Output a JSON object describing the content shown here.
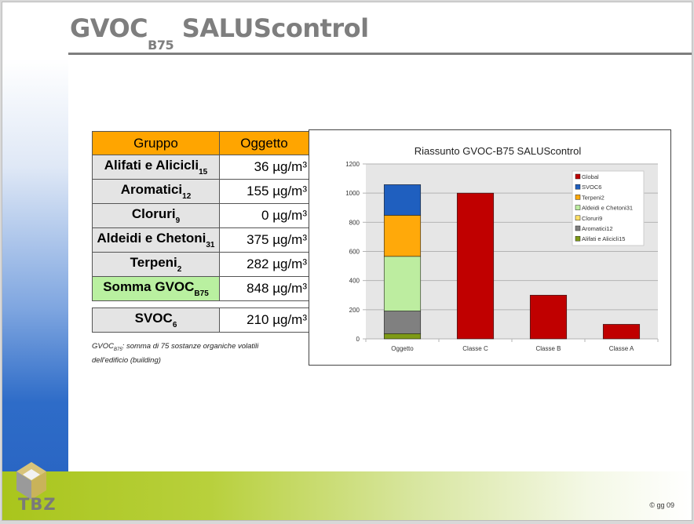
{
  "slide": {
    "title_main": "GVOC",
    "title_sub": "B75",
    "title_rest": "SALUScontrol",
    "logo_text": "TBZ",
    "copyright": "© gg 09"
  },
  "table": {
    "headers": [
      "Gruppo",
      "Oggetto"
    ],
    "rows": [
      {
        "name": "Alifati e Alicicli",
        "sub": "15",
        "value": "36 µg/m³"
      },
      {
        "name": "Aromatici",
        "sub": "12",
        "value": "155 µg/m³"
      },
      {
        "name": "Cloruri",
        "sub": "9",
        "value": "0 µg/m³"
      },
      {
        "name": "Aldeidi e Chetoni",
        "sub": "31",
        "value": "375 µg/m³"
      },
      {
        "name": "Terpeni",
        "sub": "2",
        "value": "282 µg/m³"
      },
      {
        "name": "Somma GVOC",
        "sub": "B75",
        "value": "848 µg/m³"
      }
    ],
    "extra": {
      "name": "SVOC",
      "sub": "6",
      "value": "210 µg/m³"
    },
    "sum_color": "#b9f0a0",
    "header_color": "#ffa500",
    "note_a": "GVOC",
    "note_sub": "B75",
    "note_b": ": somma di 75 sostanze organiche volatili dell'edificio (building)"
  },
  "chart_data": {
    "type": "bar",
    "stacked": true,
    "title": "Riassunto GVOC-B75 SALUScontrol",
    "categories": [
      "Oggetto",
      "Classe C",
      "Classe B",
      "Classe A"
    ],
    "ylim": [
      0,
      1200
    ],
    "yticks": [
      0,
      200,
      400,
      600,
      800,
      1000,
      1200
    ],
    "grid": true,
    "legend": "top-right",
    "series": [
      {
        "name": "Alifati e Alicicli15",
        "color": "#7e9a16",
        "values": [
          36,
          0,
          0,
          0
        ]
      },
      {
        "name": "Aromatici12",
        "color": "#808080",
        "values": [
          155,
          0,
          0,
          0
        ]
      },
      {
        "name": "Cloruri9",
        "color": "#ffe066",
        "values": [
          0,
          0,
          0,
          0
        ]
      },
      {
        "name": "Aldeidi e Chetoni31",
        "color": "#bdeda0",
        "values": [
          375,
          0,
          0,
          0
        ]
      },
      {
        "name": "Terpeni2",
        "color": "#ffa90a",
        "values": [
          282,
          0,
          0,
          0
        ]
      },
      {
        "name": "SVOC6",
        "color": "#1f5fbf",
        "values": [
          210,
          0,
          0,
          0
        ]
      },
      {
        "name": "Global",
        "color": "#c00000",
        "values": [
          0,
          1000,
          300,
          100
        ]
      }
    ]
  }
}
